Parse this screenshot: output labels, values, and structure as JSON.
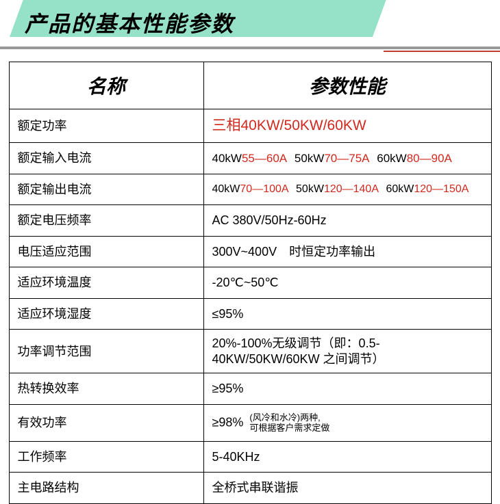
{
  "title": "产品的基本性能参数",
  "header": {
    "col1": "名称",
    "col2": "参数性能"
  },
  "rows": {
    "rated_power": {
      "label": "额定功率",
      "value_black": "三相",
      "value_red": "40KW/50KW/60KW"
    },
    "rated_input_current": {
      "label": "额定输入电流",
      "seg1_b": "40kW",
      "seg1_r": "55—60A",
      "seg2_b": "50kW",
      "seg2_r": "70—75A",
      "seg3_b": "60kW",
      "seg3_r": "80—90A"
    },
    "rated_output_current": {
      "label": "额定输出电流",
      "seg1_b": "40kW",
      "seg1_r": "70—100A",
      "seg2_b": "50kW",
      "seg2_r": "120—140A",
      "seg3_b": "60kW",
      "seg3_r": "120—150A"
    },
    "rated_voltage_freq": {
      "label": "额定电压频率",
      "value": "AC 380V/50Hz-60Hz"
    },
    "voltage_range": {
      "label": "电压适应范围",
      "value": "300V~400V　时恒定功率输出"
    },
    "ambient_temp": {
      "label": "适应环境温度",
      "value": "-20℃~50℃"
    },
    "ambient_humidity": {
      "label": "适应环境湿度",
      "value": "≤95%"
    },
    "power_adjust": {
      "label": "功率调节范围",
      "value": "20%-100%无级调节（即：0.5-40KW/50KW/60KW 之间调节）"
    },
    "thermal_eff": {
      "label": "热转换效率",
      "value": "≥95%"
    },
    "effective_power": {
      "label": "有效功率",
      "value": "≥98%",
      "note1": "(风冷和水冷)两种,",
      "note2": "可根据客户需求定做"
    },
    "work_freq": {
      "label": "工作频率",
      "value": "5-40KHz"
    },
    "main_circuit": {
      "label": "主电路结构",
      "value": "全桥式串联谐振"
    }
  },
  "colors": {
    "title_bg": "#95e2c9",
    "rule_gray": "#999999",
    "rule_red": "#c23a2e",
    "text_red": "#d1281e",
    "border": "#000000",
    "background": "#ffffff"
  }
}
